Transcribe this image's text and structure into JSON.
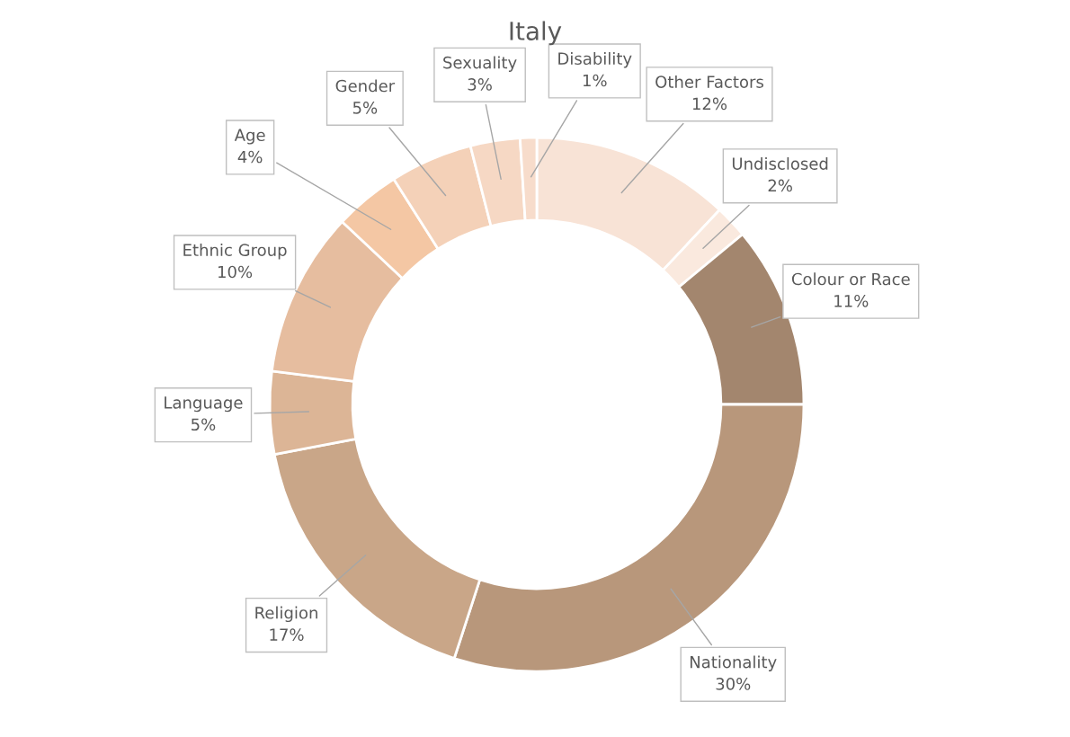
{
  "chart_data": {
    "type": "donut",
    "title": "Italy",
    "categories": [
      "Other Factors",
      "Undisclosed",
      "Colour or Race",
      "Nationality",
      "Religion",
      "Language",
      "Ethnic Group",
      "Age",
      "Gender",
      "Sexuality",
      "Disability"
    ],
    "values": [
      12,
      2,
      11,
      30,
      17,
      5,
      10,
      4,
      5,
      3,
      1
    ],
    "value_labels": [
      "12%",
      "2%",
      "11%",
      "30%",
      "17%",
      "5%",
      "10%",
      "4%",
      "5%",
      "3%",
      "1%"
    ],
    "colors": [
      "#f8e3d6",
      "#fae9de",
      "#a3866e",
      "#b8977b",
      "#c9a688",
      "#dcb596",
      "#e6bd9f",
      "#f4c7a4",
      "#f4d1b8",
      "#f6d8c4",
      "#f7dccb"
    ],
    "legend": false
  }
}
